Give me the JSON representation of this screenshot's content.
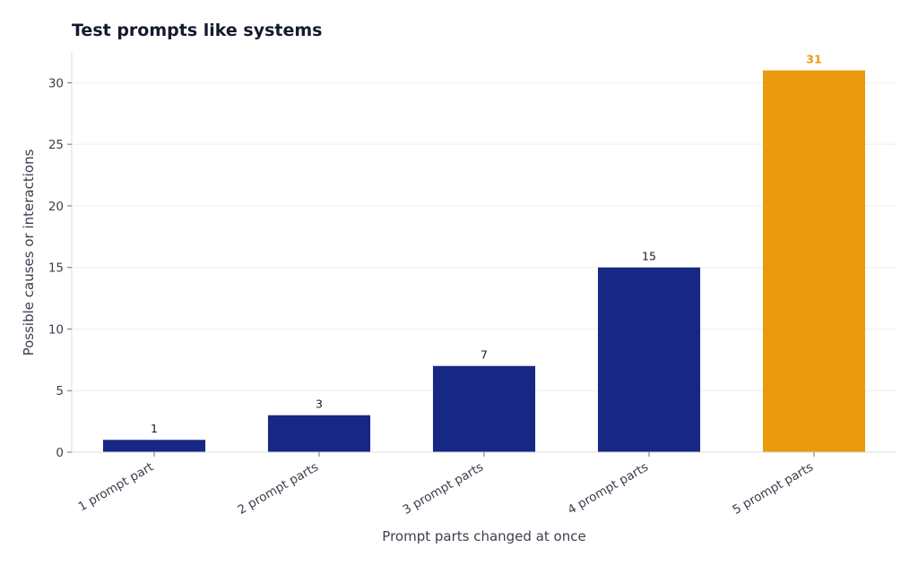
{
  "chart_data": {
    "type": "bar",
    "title": "Test prompts like systems",
    "xlabel": "Prompt parts changed at once",
    "ylabel": "Possible causes or interactions",
    "categories": [
      "1 prompt part",
      "2 prompt parts",
      "3 prompt parts",
      "4 prompt parts",
      "5 prompt parts"
    ],
    "values": [
      1,
      3,
      7,
      15,
      31
    ],
    "ylim": [
      0,
      32.5
    ],
    "yticks": [
      0,
      5,
      10,
      15,
      20,
      25,
      30
    ],
    "grid": true,
    "highlight_index": 4,
    "colors": {
      "bar": "#172784",
      "highlight": "#ea9a0c"
    }
  }
}
